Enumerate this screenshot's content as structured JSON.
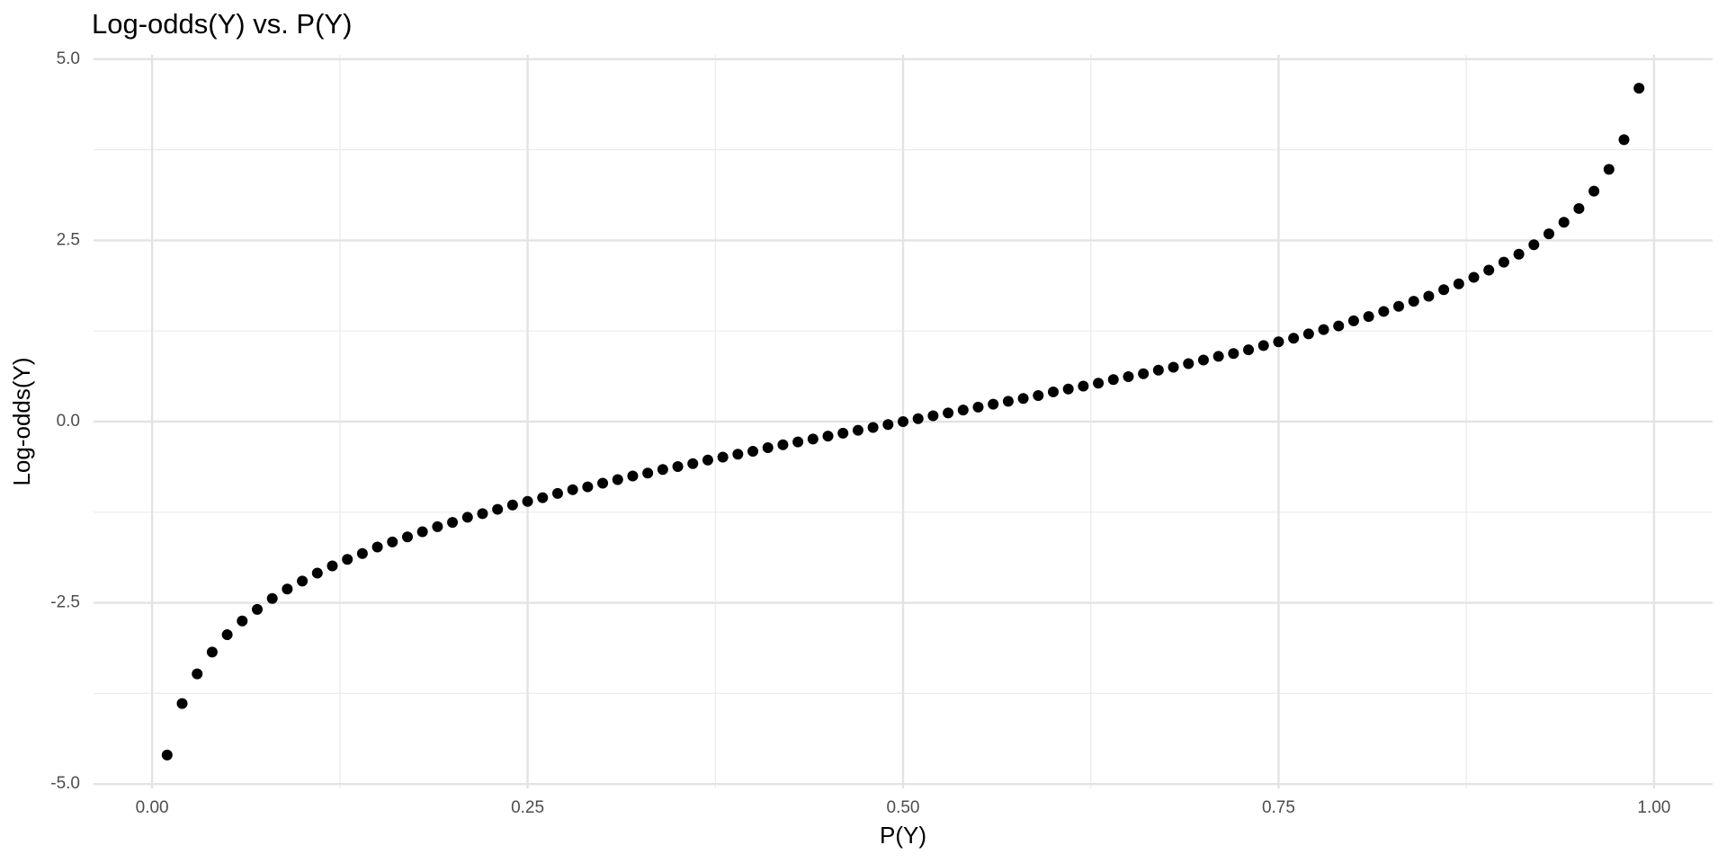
{
  "chart_data": {
    "type": "scatter",
    "title": "Log-odds(Y) vs. P(Y)",
    "x_label": "P(Y)",
    "y_label": "Log-odds(Y)",
    "x": [
      0.01,
      0.02,
      0.03,
      0.04,
      0.05,
      0.06,
      0.07,
      0.08,
      0.09,
      0.1,
      0.11,
      0.12,
      0.13,
      0.14,
      0.15,
      0.16,
      0.17,
      0.18,
      0.19,
      0.2,
      0.21,
      0.22,
      0.23,
      0.24,
      0.25,
      0.26,
      0.27,
      0.28,
      0.29,
      0.3,
      0.31,
      0.32,
      0.33,
      0.34,
      0.35,
      0.36,
      0.37,
      0.38,
      0.39,
      0.4,
      0.41,
      0.42,
      0.43,
      0.44,
      0.45,
      0.46,
      0.47,
      0.48,
      0.49,
      0.5,
      0.51,
      0.52,
      0.53,
      0.54,
      0.55,
      0.56,
      0.57,
      0.58,
      0.59,
      0.6,
      0.61,
      0.62,
      0.63,
      0.64,
      0.65,
      0.66,
      0.67,
      0.68,
      0.69,
      0.7,
      0.71,
      0.72,
      0.73,
      0.74,
      0.75,
      0.76,
      0.77,
      0.78,
      0.79,
      0.8,
      0.81,
      0.82,
      0.83,
      0.84,
      0.85,
      0.86,
      0.87,
      0.88,
      0.89,
      0.9,
      0.91,
      0.92,
      0.93,
      0.94,
      0.95,
      0.96,
      0.97,
      0.98,
      0.99
    ],
    "values": [
      -4.6,
      -3.89,
      -3.48,
      -3.18,
      -2.94,
      -2.75,
      -2.59,
      -2.44,
      -2.31,
      -2.2,
      -2.09,
      -1.99,
      -1.9,
      -1.82,
      -1.73,
      -1.66,
      -1.59,
      -1.52,
      -1.45,
      -1.39,
      -1.32,
      -1.27,
      -1.21,
      -1.15,
      -1.1,
      -1.05,
      -0.99,
      -0.94,
      -0.9,
      -0.85,
      -0.8,
      -0.75,
      -0.71,
      -0.66,
      -0.62,
      -0.58,
      -0.53,
      -0.49,
      -0.45,
      -0.41,
      -0.36,
      -0.32,
      -0.28,
      -0.24,
      -0.2,
      -0.16,
      -0.12,
      -0.08,
      -0.04,
      0,
      0.04,
      0.08,
      0.12,
      0.16,
      0.2,
      0.24,
      0.28,
      0.32,
      0.36,
      0.41,
      0.45,
      0.49,
      0.53,
      0.58,
      0.62,
      0.66,
      0.71,
      0.75,
      0.8,
      0.85,
      0.9,
      0.94,
      0.99,
      1.05,
      1.1,
      1.15,
      1.21,
      1.27,
      1.32,
      1.39,
      1.45,
      1.52,
      1.59,
      1.66,
      1.73,
      1.82,
      1.9,
      1.99,
      2.09,
      2.2,
      2.31,
      2.44,
      2.59,
      2.75,
      2.94,
      3.18,
      3.48,
      3.89,
      4.6
    ],
    "color": "#000000",
    "xlim": [
      -0.039,
      1.039
    ],
    "ylim": [
      -5.06,
      5.06
    ],
    "xticks": [
      {
        "value": 0,
        "label": "0.00"
      },
      {
        "value": 0.25,
        "label": "0.25"
      },
      {
        "value": 0.5,
        "label": "0.50"
      },
      {
        "value": 0.75,
        "label": "0.75"
      },
      {
        "value": 1,
        "label": "1.00"
      }
    ],
    "yticks": [
      {
        "value": -5,
        "label": "-5.0"
      },
      -2.5,
      {
        "value": 0,
        "label": "0.0"
      },
      2.5,
      {
        "value": 5,
        "label": "5.0"
      }
    ],
    "x_minor_grid": [
      0.125,
      0.375,
      0.625,
      0.875
    ],
    "y_minor_grid": [
      -3.75,
      -1.25,
      1.25,
      3.75
    ],
    "grid": true
  }
}
